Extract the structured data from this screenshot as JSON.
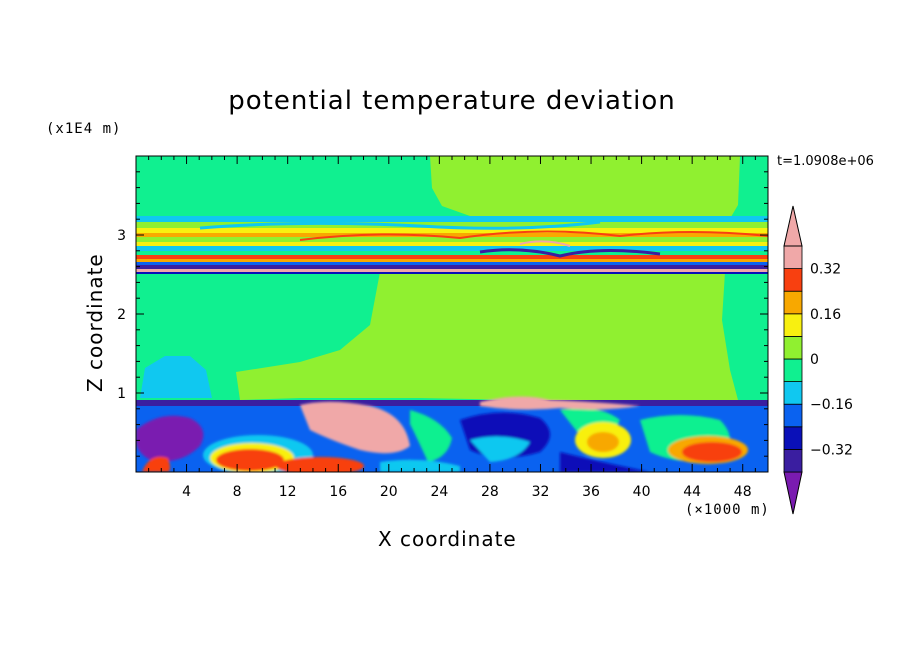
{
  "chart_data": {
    "type": "heatmap",
    "title": "potential temperature deviation",
    "xlabel": "X coordinate",
    "ylabel": "Z coordinate",
    "x_unit": "(×1000 m)",
    "y_unit": "(x1E4 m)",
    "time_label": "t=1.0908e+06",
    "xlim": [
      0,
      50
    ],
    "ylim": [
      0,
      4
    ],
    "x_ticks": [
      4,
      8,
      12,
      16,
      20,
      24,
      28,
      32,
      36,
      40,
      44,
      48
    ],
    "y_ticks": [
      1,
      2,
      3
    ],
    "colorbar": {
      "levels": [
        -0.4,
        -0.32,
        -0.24,
        -0.16,
        -0.08,
        0,
        0.08,
        0.16,
        0.24,
        0.32,
        0.4
      ],
      "tick_values": [
        0.32,
        0.16,
        0,
        -0.16,
        -0.32
      ],
      "tick_labels": [
        "0.32",
        "0.16",
        "0",
        "−0.16",
        "−0.32"
      ],
      "colors": [
        "#7a1bb0",
        "#3a1ea0",
        "#0a10b8",
        "#0a62f0",
        "#10c8f0",
        "#10f090",
        "#90f030",
        "#f8f010",
        "#f8a800",
        "#f84010",
        "#f0a8a8"
      ]
    }
  }
}
